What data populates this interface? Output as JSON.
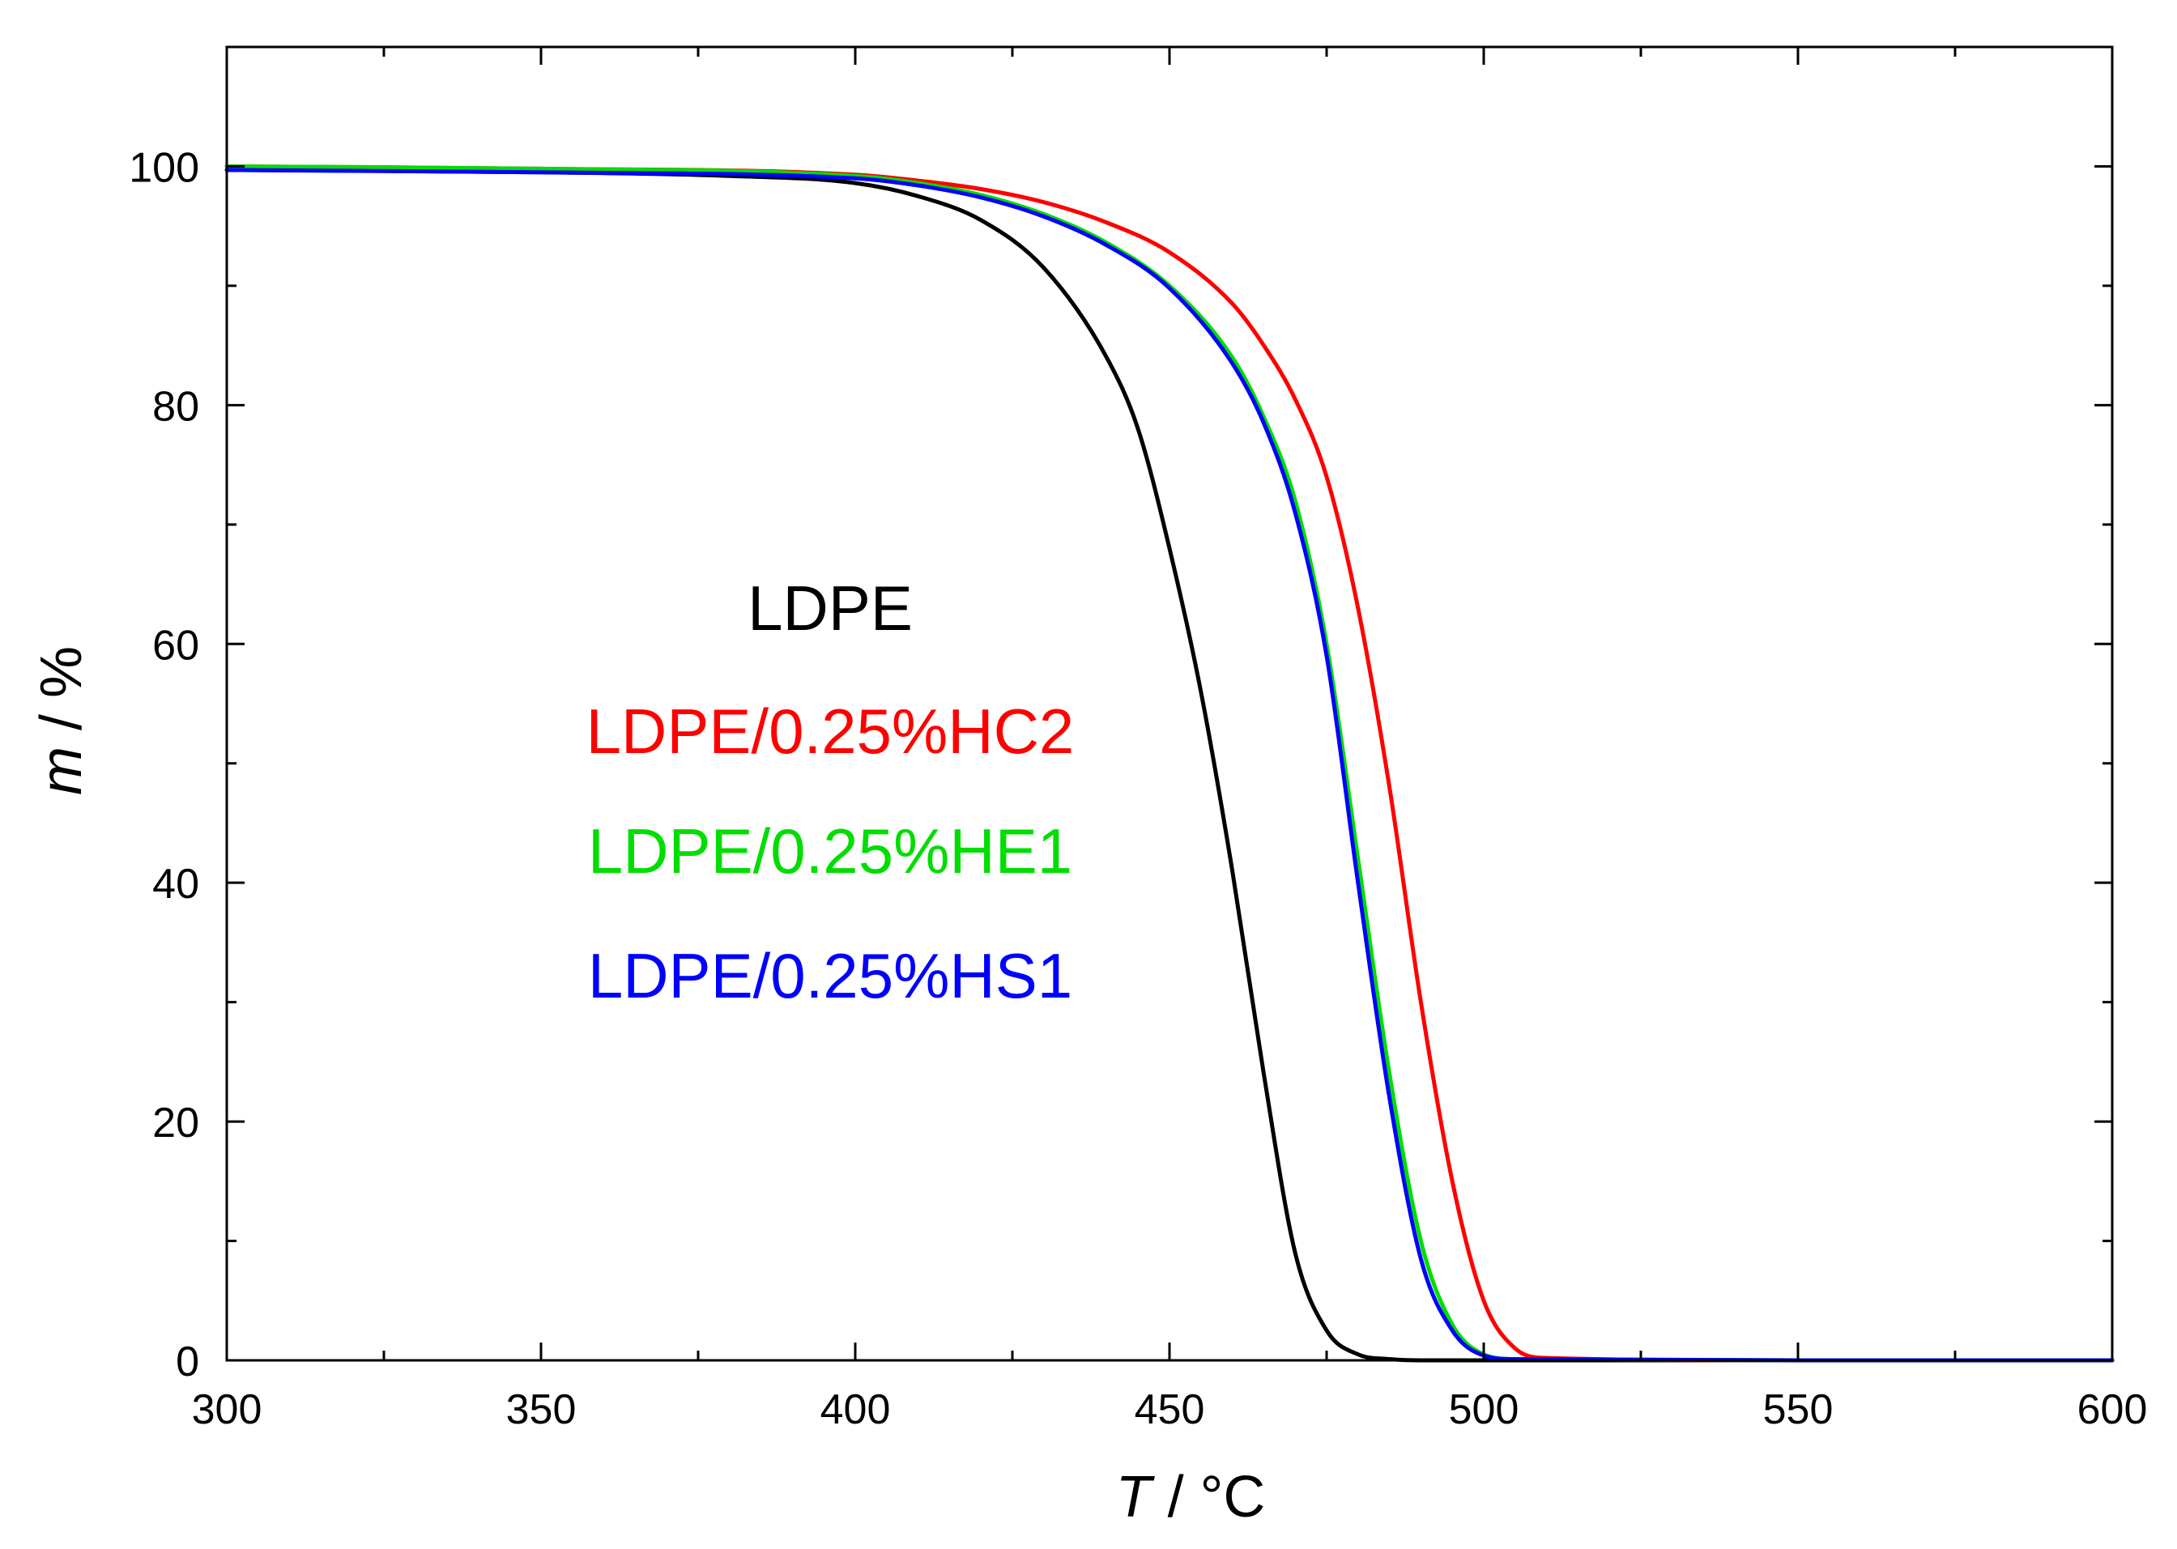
{
  "chart_data": {
    "type": "line",
    "title": "",
    "xlabel": {
      "var": "T",
      "unit": " / °C"
    },
    "ylabel": {
      "var": "m",
      "unit": " / %"
    },
    "xlim": [
      300,
      600
    ],
    "ylim": [
      0,
      110
    ],
    "xticks": [
      300,
      350,
      400,
      450,
      500,
      550,
      600
    ],
    "yticks": [
      0,
      20,
      40,
      60,
      80,
      100
    ],
    "grid": false,
    "legend_position": "center-left",
    "series": [
      {
        "name": "LDPE",
        "color": "#000000",
        "x": [
          300,
          350,
          380,
          400,
          410,
          420,
          430,
          440,
          445,
          450,
          455,
          460,
          465,
          470,
          475,
          480,
          485,
          490,
          500,
          550,
          600
        ],
        "y": [
          99.7,
          99.5,
          99.2,
          98.6,
          97.5,
          95.5,
          91.5,
          84,
          78,
          68,
          56,
          41,
          24,
          9,
          2.5,
          0.5,
          0.1,
          0,
          0,
          0,
          0
        ]
      },
      {
        "name": "LDPE/0.25%HC2",
        "color": "#ff0000",
        "x": [
          300,
          350,
          400,
          410,
          420,
          430,
          440,
          450,
          460,
          465,
          470,
          475,
          480,
          485,
          490,
          495,
          500,
          505,
          510,
          550,
          600
        ],
        "y": [
          100,
          99.8,
          99.3,
          98.8,
          98.1,
          97,
          95.3,
          92.8,
          88.5,
          85,
          80.5,
          74,
          63,
          48,
          30,
          15,
          5,
          1,
          0.2,
          0,
          0
        ]
      },
      {
        "name": "LDPE/0.25%HE1",
        "color": "#00dd00",
        "x": [
          300,
          350,
          400,
          410,
          420,
          430,
          440,
          450,
          460,
          465,
          470,
          475,
          480,
          485,
          490,
          495,
          500,
          505,
          550,
          600
        ],
        "y": [
          100,
          99.8,
          99.2,
          98.6,
          97.6,
          96,
          93.6,
          90,
          84,
          79,
          72,
          60,
          42,
          24,
          10,
          3,
          0.5,
          0.1,
          0,
          0
        ]
      },
      {
        "name": "LDPE/0.25%HS1",
        "color": "#0000ff",
        "x": [
          300,
          350,
          400,
          410,
          420,
          430,
          440,
          450,
          460,
          465,
          470,
          475,
          480,
          485,
          490,
          495,
          500,
          505,
          550,
          600
        ],
        "y": [
          99.7,
          99.5,
          99,
          98.4,
          97.4,
          95.8,
          93.4,
          89.8,
          83.5,
          78.5,
          71,
          59,
          40,
          22,
          8.5,
          2.5,
          0.4,
          0.1,
          0,
          0
        ]
      }
    ]
  }
}
